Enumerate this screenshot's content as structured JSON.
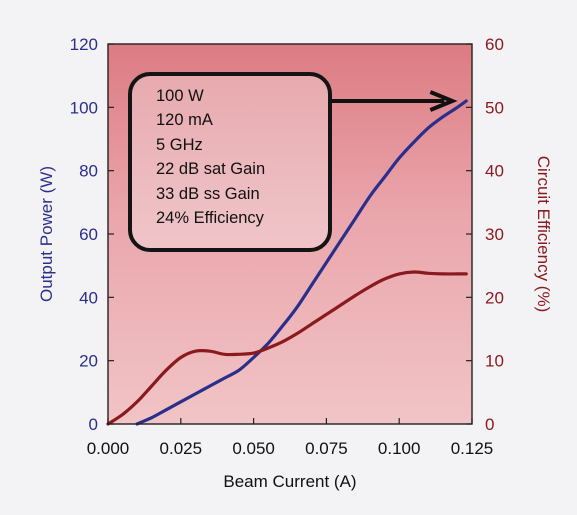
{
  "chart_data": {
    "type": "line",
    "title": "",
    "xlabel": "Beam Current (A)",
    "ylabel_left": "Output Power (W)",
    "ylabel_right": "Circuit Efficiency (%)",
    "xlim": [
      0,
      0.125
    ],
    "ylim_left": [
      0,
      120
    ],
    "ylim_right": [
      0,
      60
    ],
    "x_ticks": [
      "0.000",
      "0.025",
      "0.050",
      "0.075",
      "0.100",
      "0.125"
    ],
    "y_left_ticks": [
      "0",
      "20",
      "40",
      "60",
      "80",
      "100",
      "120"
    ],
    "y_right_ticks": [
      "0",
      "10",
      "20",
      "30",
      "40",
      "50",
      "60"
    ],
    "grid": false,
    "series": [
      {
        "axis": "left",
        "color": "#2b2f8c",
        "x": [
          0.01,
          0.015,
          0.02,
          0.025,
          0.03,
          0.035,
          0.04,
          0.045,
          0.05,
          0.055,
          0.06,
          0.065,
          0.07,
          0.075,
          0.08,
          0.085,
          0.09,
          0.095,
          0.1,
          0.105,
          0.11,
          0.115,
          0.12,
          0.123
        ],
        "y": [
          0,
          2,
          4.5,
          7,
          9.5,
          12,
          14.5,
          17,
          21,
          25.5,
          31,
          37,
          44,
          51,
          58,
          65,
          72,
          78,
          84,
          89,
          93.5,
          97,
          100,
          102
        ]
      },
      {
        "axis": "right",
        "color": "#8a1a1e",
        "x": [
          0.0,
          0.005,
          0.01,
          0.015,
          0.02,
          0.025,
          0.03,
          0.035,
          0.04,
          0.045,
          0.05,
          0.055,
          0.06,
          0.065,
          0.07,
          0.075,
          0.08,
          0.085,
          0.09,
          0.095,
          0.1,
          0.105,
          0.11,
          0.115,
          0.12,
          0.123
        ],
        "y": [
          0,
          1.5,
          3.5,
          6,
          8.5,
          10.5,
          11.5,
          11.5,
          11,
          11,
          11.2,
          12,
          13,
          14.3,
          15.8,
          17.3,
          18.8,
          20.3,
          21.7,
          22.9,
          23.7,
          24,
          23.8,
          23.7,
          23.7,
          23.7
        ]
      }
    ],
    "annotation": {
      "lines": [
        "100 W",
        "120 mA",
        "5 GHz",
        "22 dB sat Gain",
        "33 dB ss Gain",
        "24% Efficiency"
      ],
      "arrow_to": {
        "x": 0.121,
        "y_left": 102
      }
    }
  }
}
